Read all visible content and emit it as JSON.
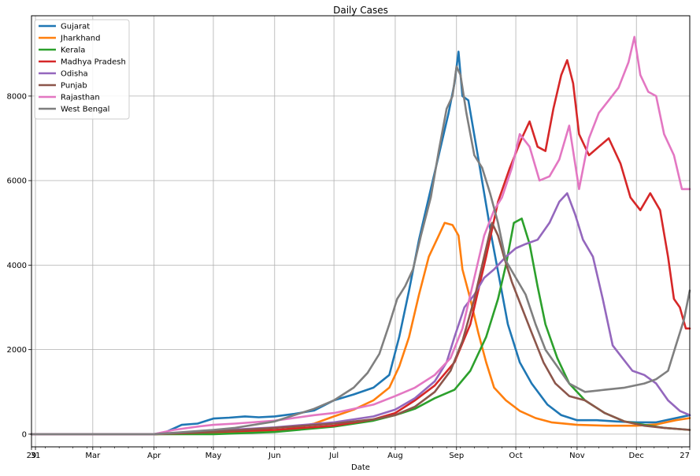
{
  "chart_data": {
    "type": "line",
    "title": "Daily Cases",
    "xlabel": "Date",
    "ylabel": "",
    "xlim_days": [
      0,
      333
    ],
    "ylim": [
      -300,
      9900
    ],
    "grid": true,
    "legend_position": "top-left",
    "x_ticks": [
      {
        "day": 0,
        "label": "29"
      },
      {
        "day": 2,
        "label": "31"
      },
      {
        "day": 31,
        "label": "Mar"
      },
      {
        "day": 62,
        "label": "Apr"
      },
      {
        "day": 92,
        "label": "May"
      },
      {
        "day": 123,
        "label": "Jun"
      },
      {
        "day": 153,
        "label": "Jul"
      },
      {
        "day": 184,
        "label": "Aug"
      },
      {
        "day": 215,
        "label": "Sep"
      },
      {
        "day": 245,
        "label": "Oct"
      },
      {
        "day": 276,
        "label": "Nov"
      },
      {
        "day": 306,
        "label": "Dec"
      },
      {
        "day": 333,
        "label": "27"
      }
    ],
    "y_ticks": [
      0,
      2000,
      4000,
      6000,
      8000
    ],
    "series": [
      {
        "name": "Gujarat",
        "color": "#1f77b4",
        "points": [
          [
            0,
            0
          ],
          [
            30,
            0
          ],
          [
            62,
            0
          ],
          [
            68,
            50
          ],
          [
            76,
            220
          ],
          [
            84,
            250
          ],
          [
            92,
            370
          ],
          [
            100,
            390
          ],
          [
            108,
            420
          ],
          [
            115,
            400
          ],
          [
            123,
            420
          ],
          [
            133,
            480
          ],
          [
            143,
            560
          ],
          [
            153,
            800
          ],
          [
            163,
            940
          ],
          [
            173,
            1100
          ],
          [
            181,
            1400
          ],
          [
            186,
            2300
          ],
          [
            191,
            3400
          ],
          [
            196,
            4600
          ],
          [
            201,
            5600
          ],
          [
            206,
            6600
          ],
          [
            211,
            7600
          ],
          [
            214,
            8300
          ],
          [
            216,
            9050
          ],
          [
            218,
            8000
          ],
          [
            221,
            7900
          ],
          [
            225,
            6800
          ],
          [
            229,
            5700
          ],
          [
            233,
            4600
          ],
          [
            237,
            3600
          ],
          [
            241,
            2600
          ],
          [
            247,
            1700
          ],
          [
            253,
            1200
          ],
          [
            261,
            700
          ],
          [
            268,
            450
          ],
          [
            276,
            330
          ],
          [
            286,
            330
          ],
          [
            296,
            300
          ],
          [
            306,
            280
          ],
          [
            316,
            280
          ],
          [
            326,
            380
          ],
          [
            333,
            450
          ]
        ]
      },
      {
        "name": "Jharkhand",
        "color": "#ff7f0e",
        "points": [
          [
            0,
            0
          ],
          [
            62,
            0
          ],
          [
            92,
            20
          ],
          [
            123,
            60
          ],
          [
            143,
            250
          ],
          [
            153,
            420
          ],
          [
            163,
            580
          ],
          [
            173,
            800
          ],
          [
            181,
            1100
          ],
          [
            186,
            1600
          ],
          [
            191,
            2300
          ],
          [
            196,
            3300
          ],
          [
            201,
            4200
          ],
          [
            206,
            4700
          ],
          [
            209,
            5000
          ],
          [
            213,
            4950
          ],
          [
            216,
            4700
          ],
          [
            218,
            3900
          ],
          [
            222,
            3200
          ],
          [
            226,
            2400
          ],
          [
            230,
            1700
          ],
          [
            234,
            1100
          ],
          [
            240,
            800
          ],
          [
            247,
            550
          ],
          [
            255,
            380
          ],
          [
            263,
            280
          ],
          [
            276,
            220
          ],
          [
            291,
            200
          ],
          [
            306,
            200
          ],
          [
            316,
            230
          ],
          [
            326,
            330
          ],
          [
            333,
            380
          ]
        ]
      },
      {
        "name": "Kerala",
        "color": "#2ca02c",
        "points": [
          [
            0,
            0
          ],
          [
            92,
            0
          ],
          [
            123,
            50
          ],
          [
            153,
            180
          ],
          [
            173,
            320
          ],
          [
            184,
            450
          ],
          [
            194,
            600
          ],
          [
            204,
            850
          ],
          [
            214,
            1050
          ],
          [
            222,
            1500
          ],
          [
            230,
            2300
          ],
          [
            236,
            3200
          ],
          [
            240,
            4000
          ],
          [
            244,
            5000
          ],
          [
            248,
            5100
          ],
          [
            252,
            4500
          ],
          [
            256,
            3500
          ],
          [
            260,
            2600
          ],
          [
            266,
            1800
          ],
          [
            272,
            1200
          ],
          [
            280,
            800
          ],
          [
            290,
            500
          ],
          [
            300,
            300
          ],
          [
            310,
            220
          ],
          [
            320,
            150
          ],
          [
            333,
            100
          ]
        ]
      },
      {
        "name": "Madhya Pradesh",
        "color": "#d62728",
        "points": [
          [
            0,
            0
          ],
          [
            62,
            0
          ],
          [
            92,
            50
          ],
          [
            123,
            100
          ],
          [
            153,
            200
          ],
          [
            173,
            350
          ],
          [
            184,
            500
          ],
          [
            194,
            800
          ],
          [
            204,
            1150
          ],
          [
            214,
            1700
          ],
          [
            222,
            2600
          ],
          [
            230,
            4200
          ],
          [
            236,
            5500
          ],
          [
            242,
            6300
          ],
          [
            248,
            7000
          ],
          [
            252,
            7400
          ],
          [
            256,
            6800
          ],
          [
            260,
            6700
          ],
          [
            264,
            7700
          ],
          [
            268,
            8500
          ],
          [
            271,
            8850
          ],
          [
            274,
            8300
          ],
          [
            277,
            7100
          ],
          [
            282,
            6600
          ],
          [
            287,
            6800
          ],
          [
            292,
            7000
          ],
          [
            298,
            6400
          ],
          [
            303,
            5600
          ],
          [
            308,
            5300
          ],
          [
            313,
            5700
          ],
          [
            318,
            5300
          ],
          [
            322,
            4200
          ],
          [
            325,
            3200
          ],
          [
            328,
            3000
          ],
          [
            331,
            2500
          ],
          [
            333,
            2500
          ]
        ]
      },
      {
        "name": "Odisha",
        "color": "#9467bd",
        "points": [
          [
            0,
            0
          ],
          [
            62,
            0
          ],
          [
            92,
            80
          ],
          [
            123,
            160
          ],
          [
            153,
            280
          ],
          [
            173,
            420
          ],
          [
            184,
            580
          ],
          [
            194,
            850
          ],
          [
            204,
            1250
          ],
          [
            210,
            1700
          ],
          [
            214,
            2300
          ],
          [
            219,
            3000
          ],
          [
            224,
            3300
          ],
          [
            229,
            3700
          ],
          [
            234,
            3900
          ],
          [
            240,
            4200
          ],
          [
            245,
            4400
          ],
          [
            250,
            4500
          ],
          [
            256,
            4600
          ],
          [
            262,
            5000
          ],
          [
            267,
            5500
          ],
          [
            271,
            5700
          ],
          [
            275,
            5200
          ],
          [
            279,
            4600
          ],
          [
            284,
            4200
          ],
          [
            289,
            3200
          ],
          [
            294,
            2100
          ],
          [
            299,
            1800
          ],
          [
            304,
            1500
          ],
          [
            310,
            1400
          ],
          [
            316,
            1200
          ],
          [
            322,
            800
          ],
          [
            328,
            550
          ],
          [
            333,
            450
          ]
        ]
      },
      {
        "name": "Punjab",
        "color": "#8c564b",
        "points": [
          [
            0,
            0
          ],
          [
            62,
            0
          ],
          [
            92,
            60
          ],
          [
            123,
            150
          ],
          [
            153,
            250
          ],
          [
            173,
            350
          ],
          [
            184,
            450
          ],
          [
            194,
            650
          ],
          [
            204,
            1000
          ],
          [
            212,
            1500
          ],
          [
            218,
            2200
          ],
          [
            224,
            3200
          ],
          [
            229,
            4200
          ],
          [
            233,
            5000
          ],
          [
            236,
            4700
          ],
          [
            239,
            4200
          ],
          [
            243,
            3600
          ],
          [
            248,
            3000
          ],
          [
            253,
            2400
          ],
          [
            259,
            1700
          ],
          [
            265,
            1200
          ],
          [
            272,
            900
          ],
          [
            280,
            800
          ],
          [
            290,
            500
          ],
          [
            300,
            300
          ],
          [
            310,
            200
          ],
          [
            320,
            150
          ],
          [
            333,
            100
          ]
        ]
      },
      {
        "name": "Rajasthan",
        "color": "#e377c2",
        "points": [
          [
            0,
            0
          ],
          [
            62,
            0
          ],
          [
            72,
            100
          ],
          [
            84,
            180
          ],
          [
            92,
            220
          ],
          [
            103,
            250
          ],
          [
            123,
            320
          ],
          [
            143,
            450
          ],
          [
            153,
            500
          ],
          [
            173,
            700
          ],
          [
            184,
            900
          ],
          [
            194,
            1100
          ],
          [
            204,
            1400
          ],
          [
            212,
            1800
          ],
          [
            218,
            2500
          ],
          [
            224,
            3700
          ],
          [
            229,
            4700
          ],
          [
            234,
            5300
          ],
          [
            238,
            5600
          ],
          [
            243,
            6300
          ],
          [
            247,
            7100
          ],
          [
            252,
            6800
          ],
          [
            257,
            6000
          ],
          [
            262,
            6100
          ],
          [
            267,
            6500
          ],
          [
            272,
            7300
          ],
          [
            277,
            5800
          ],
          [
            282,
            7000
          ],
          [
            287,
            7600
          ],
          [
            292,
            7900
          ],
          [
            297,
            8200
          ],
          [
            302,
            8800
          ],
          [
            305,
            9400
          ],
          [
            308,
            8500
          ],
          [
            312,
            8100
          ],
          [
            316,
            8000
          ],
          [
            320,
            7100
          ],
          [
            325,
            6600
          ],
          [
            329,
            5800
          ],
          [
            333,
            5800
          ]
        ]
      },
      {
        "name": "West Bengal",
        "color": "#7f7f7f",
        "points": [
          [
            0,
            0
          ],
          [
            62,
            0
          ],
          [
            92,
            100
          ],
          [
            103,
            150
          ],
          [
            123,
            300
          ],
          [
            143,
            600
          ],
          [
            153,
            800
          ],
          [
            163,
            1100
          ],
          [
            170,
            1450
          ],
          [
            176,
            1900
          ],
          [
            181,
            2600
          ],
          [
            185,
            3200
          ],
          [
            189,
            3500
          ],
          [
            193,
            3900
          ],
          [
            197,
            4700
          ],
          [
            202,
            5600
          ],
          [
            206,
            6700
          ],
          [
            210,
            7700
          ],
          [
            213,
            8000
          ],
          [
            215,
            8700
          ],
          [
            217,
            8500
          ],
          [
            220,
            7600
          ],
          [
            224,
            6600
          ],
          [
            228,
            6300
          ],
          [
            232,
            5700
          ],
          [
            236,
            5000
          ],
          [
            240,
            4100
          ],
          [
            245,
            3700
          ],
          [
            250,
            3300
          ],
          [
            255,
            2600
          ],
          [
            260,
            2000
          ],
          [
            266,
            1600
          ],
          [
            272,
            1200
          ],
          [
            280,
            1000
          ],
          [
            290,
            1050
          ],
          [
            300,
            1100
          ],
          [
            310,
            1200
          ],
          [
            316,
            1300
          ],
          [
            322,
            1500
          ],
          [
            326,
            2100
          ],
          [
            330,
            2700
          ],
          [
            333,
            3400
          ]
        ]
      }
    ]
  }
}
